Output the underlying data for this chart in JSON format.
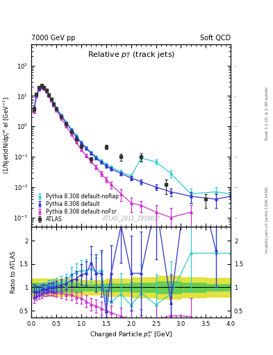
{
  "title_left": "7000 GeV pp",
  "title_right": "Soft QCD",
  "plot_title": "Relative $p_T$ (track jets)",
  "ylabel_main": "(1/Njet)dN/dp$^{rel}_{T}$ el [GeV$^{-1}$]",
  "ylabel_ratio": "Ratio to ATLAS",
  "xlabel": "Charged Particle $\\mathregular{p^{el}_T}$ [GeV]",
  "watermark": "ATLAS_2011_I919017",
  "right_label1": "Rivet 3.1.10; ≥ 2.3M events",
  "right_label2": "mcplots.cern.ch [arXiv:1306.3436]",
  "atlas_x": [
    0.05,
    0.1,
    0.15,
    0.2,
    0.25,
    0.3,
    0.35,
    0.4,
    0.45,
    0.5,
    0.6,
    0.7,
    0.8,
    0.9,
    1.0,
    1.2,
    1.5,
    1.8,
    2.2,
    2.7,
    3.5
  ],
  "atlas_y": [
    3.8,
    11.5,
    19.0,
    22.0,
    19.5,
    15.5,
    11.0,
    7.8,
    5.5,
    3.8,
    2.1,
    1.2,
    0.65,
    0.38,
    0.22,
    0.085,
    0.21,
    0.1,
    0.1,
    0.012,
    0.004
  ],
  "atlas_yerr": [
    0.5,
    1.0,
    1.5,
    1.8,
    1.5,
    1.2,
    0.9,
    0.6,
    0.4,
    0.3,
    0.18,
    0.1,
    0.055,
    0.032,
    0.022,
    0.01,
    0.03,
    0.025,
    0.03,
    0.006,
    0.002
  ],
  "py_default_x": [
    0.05,
    0.1,
    0.15,
    0.2,
    0.25,
    0.3,
    0.35,
    0.4,
    0.45,
    0.5,
    0.6,
    0.7,
    0.8,
    0.9,
    1.0,
    1.1,
    1.2,
    1.3,
    1.4,
    1.5,
    1.6,
    1.8,
    2.0,
    2.2,
    2.5,
    2.8,
    3.2,
    3.7,
    4.0
  ],
  "py_default_y": [
    3.5,
    10.5,
    17.5,
    21.0,
    19.0,
    15.0,
    11.0,
    7.8,
    5.5,
    3.9,
    2.2,
    1.3,
    0.75,
    0.45,
    0.28,
    0.19,
    0.13,
    0.09,
    0.065,
    0.05,
    0.04,
    0.028,
    0.02,
    0.015,
    0.01,
    0.007,
    0.005,
    0.004,
    0.005
  ],
  "py_default_yerr": [
    0.3,
    0.7,
    1.2,
    1.5,
    1.3,
    1.1,
    0.8,
    0.6,
    0.4,
    0.3,
    0.17,
    0.1,
    0.06,
    0.04,
    0.024,
    0.017,
    0.012,
    0.009,
    0.007,
    0.006,
    0.005,
    0.004,
    0.003,
    0.003,
    0.002,
    0.002,
    0.002,
    0.002,
    0.002
  ],
  "py_nofsr_x": [
    0.05,
    0.1,
    0.15,
    0.2,
    0.25,
    0.3,
    0.35,
    0.4,
    0.45,
    0.5,
    0.6,
    0.7,
    0.8,
    0.9,
    1.0,
    1.1,
    1.2,
    1.3,
    1.4,
    1.5,
    1.6,
    1.8,
    2.0,
    2.2,
    2.5,
    2.8,
    3.2
  ],
  "py_nofsr_y": [
    3.0,
    9.5,
    16.0,
    19.0,
    17.5,
    14.0,
    10.2,
    7.2,
    5.0,
    3.4,
    1.85,
    1.02,
    0.55,
    0.3,
    0.17,
    0.11,
    0.07,
    0.045,
    0.028,
    0.018,
    0.012,
    0.006,
    0.003,
    0.0025,
    0.0015,
    0.001,
    0.0015
  ],
  "py_nofsr_yerr": [
    0.3,
    0.7,
    1.1,
    1.4,
    1.3,
    1.0,
    0.8,
    0.55,
    0.38,
    0.27,
    0.15,
    0.09,
    0.05,
    0.03,
    0.018,
    0.013,
    0.009,
    0.007,
    0.005,
    0.004,
    0.003,
    0.0025,
    0.0015,
    0.001,
    0.001,
    0.001,
    0.001
  ],
  "py_norap_x": [
    0.05,
    0.1,
    0.15,
    0.2,
    0.25,
    0.3,
    0.35,
    0.4,
    0.45,
    0.5,
    0.6,
    0.7,
    0.8,
    0.9,
    1.0,
    1.1,
    1.2,
    1.3,
    1.4,
    1.5,
    1.6,
    1.8,
    2.0,
    2.2,
    2.5,
    2.8,
    3.2,
    3.7,
    4.0
  ],
  "py_norap_y": [
    3.5,
    10.5,
    18.0,
    21.5,
    19.5,
    15.5,
    11.5,
    8.2,
    5.8,
    4.1,
    2.35,
    1.38,
    0.82,
    0.5,
    0.3,
    0.2,
    0.14,
    0.1,
    0.075,
    0.057,
    0.045,
    0.032,
    0.023,
    0.09,
    0.068,
    0.028,
    0.006,
    0.007,
    0.006
  ],
  "py_norap_yerr": [
    0.3,
    0.8,
    1.3,
    1.6,
    1.4,
    1.2,
    0.9,
    0.65,
    0.45,
    0.32,
    0.19,
    0.11,
    0.065,
    0.042,
    0.027,
    0.019,
    0.013,
    0.01,
    0.008,
    0.007,
    0.006,
    0.005,
    0.004,
    0.015,
    0.012,
    0.007,
    0.003,
    0.003,
    0.003
  ],
  "ratio_default_x": [
    0.05,
    0.1,
    0.15,
    0.2,
    0.25,
    0.3,
    0.35,
    0.4,
    0.45,
    0.5,
    0.6,
    0.7,
    0.8,
    0.9,
    1.0,
    1.1,
    1.2,
    1.3,
    1.4,
    1.5,
    1.6,
    1.8,
    2.0,
    2.2,
    2.5,
    2.8,
    3.2,
    3.7
  ],
  "ratio_default_y": [
    0.92,
    0.91,
    0.92,
    0.955,
    0.974,
    0.968,
    1.0,
    1.0,
    1.0,
    1.026,
    1.048,
    1.083,
    1.154,
    1.184,
    1.273,
    1.3,
    1.529,
    1.3,
    1.3,
    0.48,
    1.3,
    2.33,
    1.3,
    1.3,
    2.8,
    0.67,
    4.0,
    1.8
  ],
  "ratio_default_yerr": [
    0.15,
    0.12,
    0.1,
    0.1,
    0.09,
    0.09,
    0.1,
    0.1,
    0.11,
    0.11,
    0.12,
    0.13,
    0.14,
    0.16,
    0.22,
    0.26,
    0.35,
    0.4,
    0.5,
    0.45,
    0.6,
    0.8,
    0.8,
    0.9,
    1.2,
    0.6,
    1.5,
    0.8
  ],
  "ratio_nofsr_x": [
    0.05,
    0.1,
    0.15,
    0.2,
    0.25,
    0.3,
    0.35,
    0.4,
    0.45,
    0.5,
    0.6,
    0.7,
    0.8,
    0.9,
    1.0,
    1.1,
    1.2,
    1.3,
    1.4,
    1.5,
    1.6,
    1.8,
    2.0,
    2.2,
    2.5,
    2.8,
    3.2
  ],
  "ratio_nofsr_y": [
    0.79,
    0.826,
    0.842,
    0.864,
    0.897,
    0.903,
    0.927,
    0.923,
    0.909,
    0.895,
    0.881,
    0.85,
    0.846,
    0.789,
    0.773,
    0.7,
    0.635,
    0.6,
    0.55,
    0.5,
    0.46,
    0.38,
    0.3,
    0.285,
    0.3,
    0.4,
    0.375
  ],
  "ratio_nofsr_yerr": [
    0.12,
    0.1,
    0.09,
    0.09,
    0.09,
    0.09,
    0.1,
    0.1,
    0.1,
    0.1,
    0.11,
    0.11,
    0.12,
    0.12,
    0.13,
    0.13,
    0.13,
    0.14,
    0.14,
    0.15,
    0.15,
    0.18,
    0.2,
    0.25,
    0.3,
    0.4,
    0.4
  ],
  "ratio_norap_x": [
    0.05,
    0.1,
    0.15,
    0.2,
    0.25,
    0.3,
    0.35,
    0.4,
    0.45,
    0.5,
    0.6,
    0.7,
    0.8,
    0.9,
    1.0,
    1.1,
    1.2,
    1.3,
    1.4,
    1.5,
    1.6,
    1.8,
    2.0,
    2.2,
    2.5,
    2.8,
    3.2,
    3.7,
    4.0
  ],
  "ratio_norap_y": [
    0.92,
    0.913,
    0.947,
    0.977,
    1.0,
    1.0,
    1.045,
    1.051,
    1.055,
    1.079,
    1.119,
    1.15,
    1.26,
    1.316,
    1.364,
    1.35,
    1.41,
    1.31,
    1.37,
    0.72,
    0.69,
    0.855,
    0.614,
    0.88,
    0.63,
    0.855,
    1.73,
    1.73,
    1.73
  ],
  "ratio_norap_yerr": [
    0.15,
    0.12,
    0.1,
    0.1,
    0.1,
    0.1,
    0.11,
    0.11,
    0.12,
    0.12,
    0.13,
    0.14,
    0.17,
    0.19,
    0.22,
    0.25,
    0.3,
    0.32,
    0.38,
    0.35,
    0.4,
    0.45,
    0.5,
    0.6,
    0.65,
    0.7,
    0.8,
    0.8,
    0.8
  ],
  "band_x_edges": [
    0.0,
    0.5,
    1.0,
    1.5,
    2.0,
    2.5,
    3.0,
    3.5,
    4.0
  ],
  "band_outer_lo": [
    0.82,
    0.82,
    0.85,
    0.82,
    0.78,
    0.75,
    0.78,
    0.8,
    0.8
  ],
  "band_outer_hi": [
    1.18,
    1.18,
    1.15,
    1.18,
    1.22,
    1.25,
    1.22,
    1.2,
    1.2
  ],
  "band_inner_lo": [
    0.9,
    0.9,
    0.93,
    0.92,
    0.9,
    0.88,
    0.9,
    0.93,
    0.93
  ],
  "band_inner_hi": [
    1.1,
    1.1,
    1.07,
    1.08,
    1.1,
    1.12,
    1.1,
    1.07,
    1.07
  ],
  "color_atlas": "#333333",
  "color_default": "#3333cc",
  "color_nofsr": "#cc33cc",
  "color_norap": "#33cccc",
  "color_band_inner": "#55cc55",
  "color_band_outer": "#dddd22",
  "xlim": [
    0.0,
    4.0
  ],
  "ylim_main": [
    0.0005,
    500.0
  ],
  "ylim_ratio": [
    0.35,
    2.3
  ],
  "legend_labels": [
    "ATLAS",
    "Pythia 8.308 default",
    "Pythia 8.308 default-noFsr",
    "Pythia 8.308 default-noRap"
  ]
}
